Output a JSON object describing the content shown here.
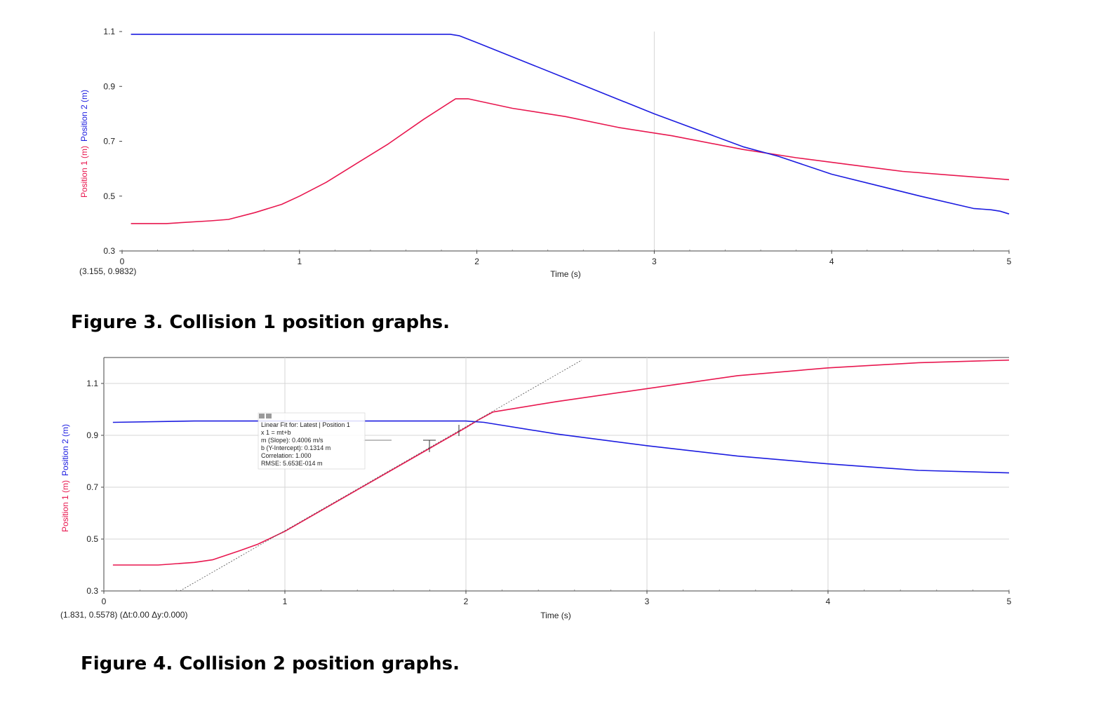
{
  "colors": {
    "position1": "#e8174f",
    "position2": "#1c1ce0",
    "grid": "#d6d6d6",
    "fit_line": "#555555"
  },
  "figure3": {
    "caption": "Figure 3.  Collision 1 position graphs.",
    "readout": "(3.155, 0.9832)"
  },
  "figure4": {
    "caption": "Figure 4.  Collision 2 position graphs.",
    "readout": "(1.831, 0.5578) (Δt:0.00 Δy:0.000)",
    "fit_box": {
      "icon": "fit-legend-icon",
      "lines": [
        "Linear Fit for: Latest | Position 1",
        "x 1 = mt+b",
        "m (Slope): 0.4006 m/s",
        "b (Y-Intercept): 0.1314 m",
        "Correlation: 1.000",
        "RMSE: 5.653E-014 m"
      ]
    }
  },
  "chart_data": [
    {
      "type": "line",
      "xlabel": "Time (s)",
      "ylabel_parts": [
        "Position 1 (m)",
        "Position 2 (m)"
      ],
      "xlim": [
        0,
        5
      ],
      "ylim": [
        0.3,
        1.1
      ],
      "xticks": [
        "0",
        "1",
        "2",
        "3",
        "4",
        "5"
      ],
      "yticks": [
        "0.3",
        "0.5",
        "0.7",
        "0.9",
        "1.1"
      ],
      "grid": true,
      "series": [
        {
          "name": "Position 1",
          "color": "#e8174f",
          "x": [
            0.05,
            0.25,
            0.5,
            0.6,
            0.75,
            0.9,
            1.0,
            1.15,
            1.3,
            1.5,
            1.7,
            1.88,
            1.95,
            2.2,
            2.5,
            2.8,
            3.1,
            3.5,
            3.8,
            4.1,
            4.4,
            4.7,
            5.0
          ],
          "y": [
            0.4,
            0.4,
            0.41,
            0.415,
            0.44,
            0.47,
            0.5,
            0.55,
            0.61,
            0.69,
            0.78,
            0.855,
            0.855,
            0.82,
            0.79,
            0.75,
            0.72,
            0.67,
            0.64,
            0.615,
            0.59,
            0.575,
            0.56
          ]
        },
        {
          "name": "Position 2",
          "color": "#1c1ce0",
          "x": [
            0.05,
            0.5,
            1.0,
            1.5,
            1.85,
            1.9,
            2.0,
            2.5,
            3.0,
            3.5,
            3.7,
            4.0,
            4.5,
            4.8,
            4.9,
            4.95,
            5.0
          ],
          "y": [
            1.09,
            1.09,
            1.09,
            1.09,
            1.09,
            1.085,
            1.06,
            0.93,
            0.8,
            0.68,
            0.645,
            0.58,
            0.5,
            0.455,
            0.45,
            0.445,
            0.435
          ]
        }
      ]
    },
    {
      "type": "line",
      "xlabel": "Time (s)",
      "ylabel_parts": [
        "Position 1 (m)",
        "Position 2 (m)"
      ],
      "xlim": [
        0,
        5
      ],
      "ylim": [
        0.3,
        1.1
      ],
      "xticks": [
        "0",
        "1",
        "2",
        "3",
        "4",
        "5"
      ],
      "yticks": [
        "0.3",
        "0.5",
        "0.7",
        "0.9",
        "1.1"
      ],
      "grid": true,
      "series": [
        {
          "name": "Position 1",
          "color": "#e8174f",
          "x": [
            0.05,
            0.3,
            0.5,
            0.6,
            0.75,
            0.85,
            1.0,
            1.2,
            1.5,
            1.8,
            2.0,
            2.07,
            2.15,
            2.5,
            3.0,
            3.5,
            4.0,
            4.5,
            5.0
          ],
          "y": [
            0.4,
            0.4,
            0.41,
            0.42,
            0.455,
            0.48,
            0.53,
            0.61,
            0.73,
            0.85,
            0.93,
            0.96,
            0.99,
            1.03,
            1.08,
            1.13,
            1.16,
            1.18,
            1.19
          ]
        },
        {
          "name": "Position 2",
          "color": "#1c1ce0",
          "x": [
            0.05,
            0.5,
            1.0,
            1.5,
            2.0,
            2.1,
            2.5,
            3.0,
            3.5,
            4.0,
            4.5,
            5.0
          ],
          "y": [
            0.95,
            0.955,
            0.955,
            0.955,
            0.955,
            0.95,
            0.905,
            0.86,
            0.82,
            0.79,
            0.765,
            0.755
          ]
        },
        {
          "name": "Linear Fit",
          "color": "#555555",
          "dashed": true,
          "x": [
            0.42,
            2.64
          ],
          "y": [
            0.3,
            1.19
          ]
        }
      ]
    }
  ]
}
